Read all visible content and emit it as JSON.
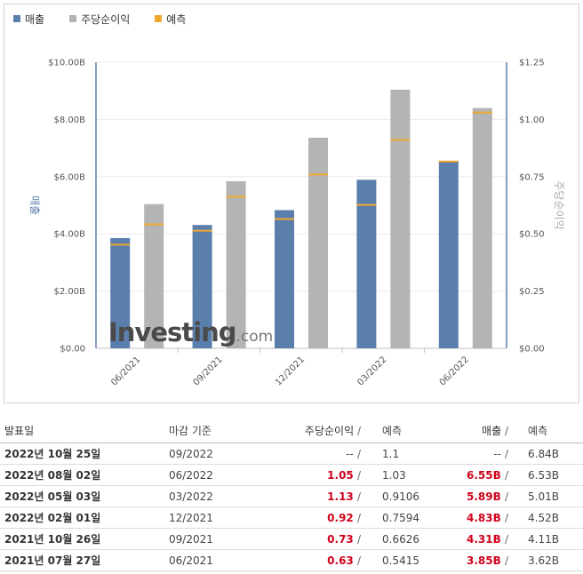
{
  "legend": [
    {
      "label": "매출",
      "color": "#5b7fad"
    },
    {
      "label": "주당순이익",
      "color": "#b4b4b4"
    },
    {
      "label": "예측",
      "color": "#f0a830"
    }
  ],
  "watermark": {
    "main": "Investing",
    "suffix": ".com"
  },
  "chart_data": {
    "type": "bar",
    "categories": [
      "06/2021",
      "09/2021",
      "12/2021",
      "03/2022",
      "06/2022"
    ],
    "left_axis": {
      "title": "매출",
      "ticks": [
        "$0.00",
        "$2.00B",
        "$4.00B",
        "$6.00B",
        "$8.00B",
        "$10.00B"
      ],
      "range": [
        0,
        10
      ]
    },
    "right_axis": {
      "title": "주당순이익",
      "ticks": [
        "$0.00",
        "$0.25",
        "$0.50",
        "$0.75",
        "$1.00",
        "$1.25"
      ],
      "range": [
        0,
        1.25
      ]
    },
    "series": [
      {
        "name": "매출",
        "axis": "left",
        "color": "#5b7fad",
        "values": [
          3.85,
          4.31,
          4.83,
          5.89,
          6.55
        ],
        "forecast": [
          3.62,
          4.11,
          4.52,
          5.01,
          6.53
        ]
      },
      {
        "name": "주당순이익",
        "axis": "right",
        "color": "#b4b4b4",
        "values": [
          0.63,
          0.73,
          0.92,
          1.13,
          1.05
        ],
        "forecast": [
          0.5415,
          0.6626,
          0.7594,
          0.9106,
          1.03
        ]
      }
    ],
    "forecast_color": "#f0a830",
    "grid": true
  },
  "table": {
    "headers": {
      "date": "발표일",
      "period": "마감 기준",
      "eps": "주당순이익",
      "slash": "/",
      "eps_fc": "예측",
      "rev": "매출",
      "rev_fc": "예측"
    },
    "rows": [
      {
        "date": "2022년 10월 25일",
        "period": "09/2022",
        "eps": "--",
        "eps_fc": "1.1",
        "rev": "--",
        "rev_fc": "6.84B",
        "eps_color": "gray",
        "rev_color": "gray"
      },
      {
        "date": "2022년 08월 02일",
        "period": "06/2022",
        "eps": "1.05",
        "eps_fc": "1.03",
        "rev": "6.55B",
        "rev_fc": "6.53B",
        "eps_color": "red",
        "rev_color": "red"
      },
      {
        "date": "2022년 05월 03일",
        "period": "03/2022",
        "eps": "1.13",
        "eps_fc": "0.9106",
        "rev": "5.89B",
        "rev_fc": "5.01B",
        "eps_color": "red",
        "rev_color": "red"
      },
      {
        "date": "2022년 02월 01일",
        "period": "12/2021",
        "eps": "0.92",
        "eps_fc": "0.7594",
        "rev": "4.83B",
        "rev_fc": "4.52B",
        "eps_color": "red",
        "rev_color": "red"
      },
      {
        "date": "2021년 10월 26일",
        "period": "09/2021",
        "eps": "0.73",
        "eps_fc": "0.6626",
        "rev": "4.31B",
        "rev_fc": "4.11B",
        "eps_color": "red",
        "rev_color": "red"
      },
      {
        "date": "2021년 07월 27일",
        "period": "06/2021",
        "eps": "0.63",
        "eps_fc": "0.5415",
        "rev": "3.85B",
        "rev_fc": "3.62B",
        "eps_color": "red",
        "rev_color": "red"
      }
    ]
  }
}
